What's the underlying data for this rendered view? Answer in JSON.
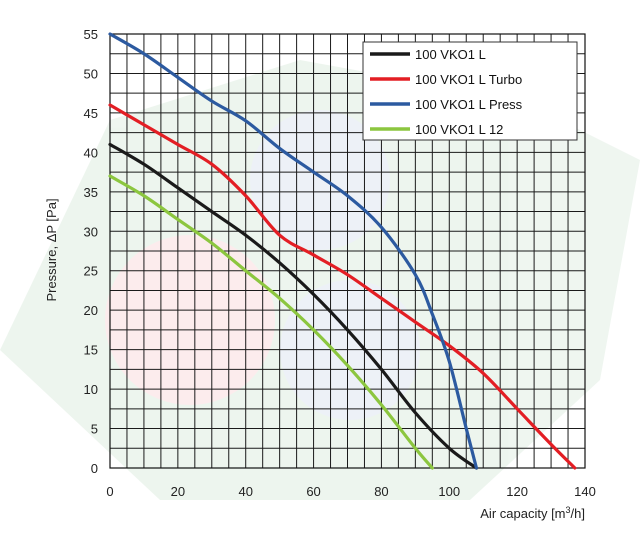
{
  "chart_data": {
    "type": "line",
    "title": "",
    "xlabel": "Air capacity [m³/h]",
    "ylabel": "Pressure, ΔP [Pa]",
    "xlim": [
      0,
      140
    ],
    "ylim": [
      0,
      55
    ],
    "xticks": [
      0,
      20,
      40,
      60,
      80,
      100,
      120,
      140
    ],
    "yticks": [
      0,
      5,
      10,
      15,
      20,
      25,
      30,
      35,
      40,
      45,
      50,
      55
    ],
    "grid": true,
    "legend_position": "top-right",
    "series": [
      {
        "name": "100 VKO1 L",
        "color": "#1a1a1a",
        "x": [
          0,
          10,
          20,
          30,
          40,
          50,
          60,
          70,
          80,
          90,
          100,
          108
        ],
        "y": [
          41,
          38.5,
          35.5,
          32.5,
          29.5,
          26,
          22,
          17.5,
          12.5,
          7,
          2.5,
          0
        ]
      },
      {
        "name": "100 VKO1 L Turbo",
        "color": "#e31e24",
        "x": [
          0,
          10,
          20,
          30,
          40,
          50,
          60,
          70,
          80,
          90,
          100,
          110,
          120,
          130,
          137
        ],
        "y": [
          46,
          43.5,
          41,
          38.5,
          34.5,
          29.5,
          27,
          24.5,
          21.5,
          18.5,
          15.5,
          12,
          7.5,
          3,
          0
        ]
      },
      {
        "name": "100 VKO1 L Press",
        "color": "#2c5aa0",
        "x": [
          0,
          10,
          20,
          30,
          40,
          50,
          60,
          70,
          80,
          90,
          95,
          100,
          105,
          108
        ],
        "y": [
          55,
          52.5,
          49.5,
          46.5,
          44,
          40.5,
          37.5,
          34.5,
          30.5,
          24.5,
          19.5,
          13.5,
          5,
          0
        ]
      },
      {
        "name": "100 VKO1 L 12",
        "color": "#8cc63f",
        "x": [
          0,
          10,
          20,
          30,
          40,
          50,
          60,
          70,
          80,
          90,
          95
        ],
        "y": [
          37,
          34.5,
          31.5,
          28.5,
          25,
          21.5,
          17.5,
          13,
          8,
          2.5,
          0
        ]
      }
    ]
  }
}
